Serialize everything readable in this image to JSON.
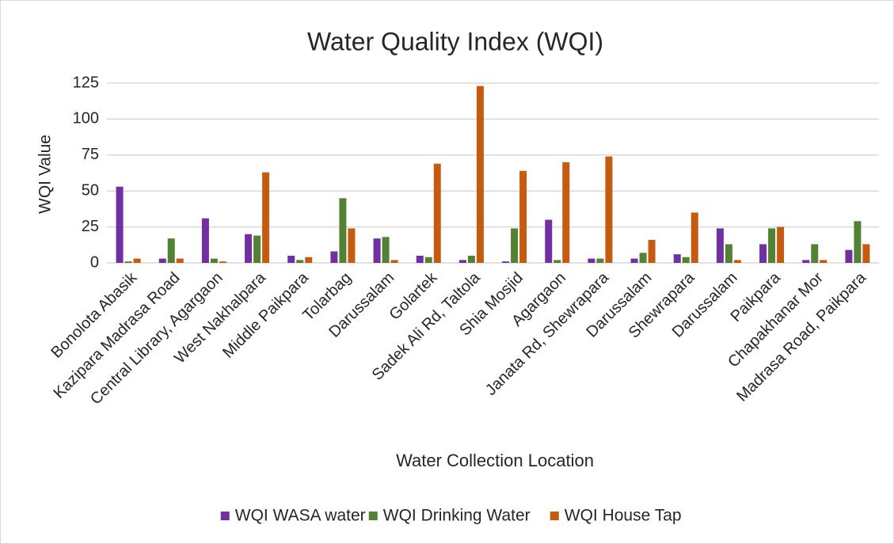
{
  "chart_data": {
    "type": "bar",
    "title": "Water Quality Index  (WQI)",
    "x_label": "Water Collection Location",
    "y_label": "WQI Value",
    "categories": [
      "Bonolota Abasik",
      "Kazipara Madrasa Road",
      "Central Library, Agargaon",
      "West Nakhalpara",
      "Middle Paikpara",
      "Tolarbag",
      "Darussalam",
      "Golartek",
      "Sadek Ali Rd, Taltola",
      "Shia Mosjid",
      "Agargaon",
      "Janata Rd, Shewrapara",
      "Darussalam",
      "Shewrapara",
      "Darussalam",
      "Paikpara",
      "Chapakhanar Mor",
      "Madrasa Road, Paikpara"
    ],
    "series": [
      {
        "name": "WQI WASA water",
        "color": "#7030a0",
        "values": [
          53,
          3,
          31,
          20,
          5,
          8,
          17,
          5,
          2,
          1,
          30,
          3,
          3,
          6,
          24,
          13,
          2,
          9
        ]
      },
      {
        "name": "WQI Drinking Water",
        "color": "#548235",
        "values": [
          1,
          17,
          3,
          19,
          2,
          45,
          18,
          4,
          5,
          24,
          2,
          3,
          7,
          4,
          13,
          24,
          13,
          29
        ]
      },
      {
        "name": "WQI House Tap",
        "color": "#c55a11",
        "values": [
          3,
          3,
          1,
          63,
          4,
          24,
          2,
          69,
          123,
          64,
          70,
          74,
          16,
          35,
          2,
          25,
          2,
          13
        ]
      }
    ],
    "ylim": [
      0,
      125
    ],
    "yticks": [
      0,
      25,
      50,
      75,
      100,
      125
    ],
    "grid": true,
    "legend": "bottom"
  }
}
